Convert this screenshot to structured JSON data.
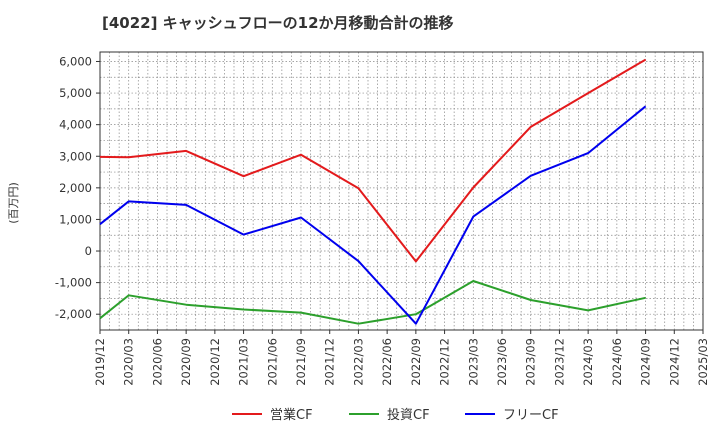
{
  "chart_data": {
    "type": "line",
    "title": "[4022]  キャッシュフローの12か月移動合計の推移",
    "ylabel": "(百万円)",
    "xlabel": "",
    "ylim": [
      -2500,
      6300
    ],
    "yticks": [
      6000,
      5000,
      4000,
      3000,
      2000,
      1000,
      0,
      -1000,
      -2000
    ],
    "ytick_labels": [
      "6,000",
      "5,000",
      "4,000",
      "3,000",
      "2,000",
      "1,000",
      "0",
      "-1,000",
      "-2,000"
    ],
    "x_labels": [
      "2019/12",
      "2020/03",
      "2020/06",
      "2020/09",
      "2020/12",
      "2021/03",
      "2021/06",
      "2021/09",
      "2021/12",
      "2022/03",
      "2022/06",
      "2022/09",
      "2022/12",
      "2023/03",
      "2023/06",
      "2023/09",
      "2023/12",
      "2024/03",
      "2024/06",
      "2024/09",
      "2024/12",
      "2025/03"
    ],
    "grid": true,
    "legend_position": "bottom-center",
    "series": [
      {
        "name": "営業CF",
        "color": "#e31a1c",
        "points": [
          [
            "2019/12",
            2980
          ],
          [
            "2020/03",
            2970
          ],
          [
            "2020/09",
            3170
          ],
          [
            "2021/03",
            2370
          ],
          [
            "2021/09",
            3050
          ],
          [
            "2022/03",
            1990
          ],
          [
            "2022/09",
            -330
          ],
          [
            "2023/03",
            2010
          ],
          [
            "2023/09",
            3930
          ],
          [
            "2024/03",
            5000
          ],
          [
            "2024/09",
            6060
          ]
        ]
      },
      {
        "name": "投資CF",
        "color": "#2ca02c",
        "points": [
          [
            "2019/12",
            -2130
          ],
          [
            "2020/03",
            -1400
          ],
          [
            "2020/09",
            -1700
          ],
          [
            "2021/03",
            -1850
          ],
          [
            "2021/09",
            -1950
          ],
          [
            "2022/03",
            -2300
          ],
          [
            "2022/09",
            -2000
          ],
          [
            "2023/03",
            -950
          ],
          [
            "2023/09",
            -1550
          ],
          [
            "2024/03",
            -1880
          ],
          [
            "2024/09",
            -1480
          ]
        ]
      },
      {
        "name": "フリーCF",
        "color": "#0000ee",
        "points": [
          [
            "2019/12",
            850
          ],
          [
            "2020/03",
            1570
          ],
          [
            "2020/09",
            1460
          ],
          [
            "2021/03",
            520
          ],
          [
            "2021/09",
            1060
          ],
          [
            "2022/03",
            -320
          ],
          [
            "2022/09",
            -2300
          ],
          [
            "2023/03",
            1090
          ],
          [
            "2023/09",
            2380
          ],
          [
            "2024/03",
            3100
          ],
          [
            "2024/09",
            4580
          ]
        ]
      }
    ]
  }
}
